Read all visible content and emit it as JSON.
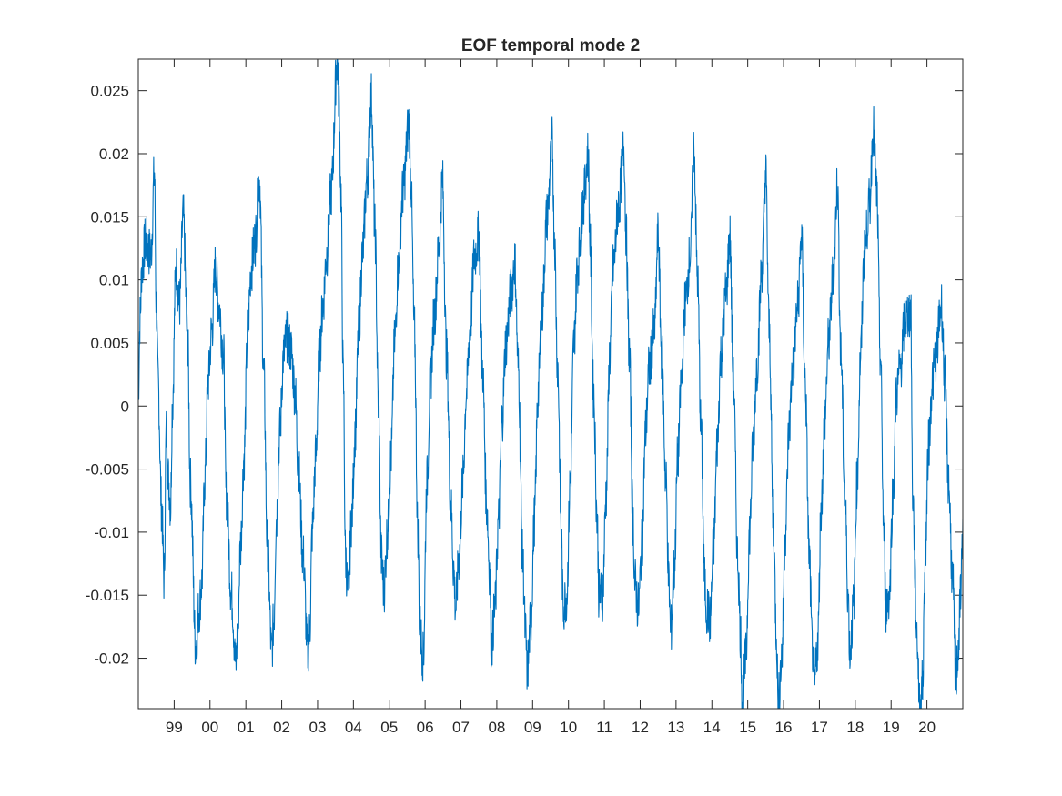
{
  "chart_data": {
    "type": "line",
    "title": "EOF temporal mode 2",
    "xlabel": "",
    "ylabel": "",
    "x_axis": {
      "unit": "year",
      "range": [
        1998.0,
        2021.0
      ],
      "tick_values": [
        1999,
        2000,
        2001,
        2002,
        2003,
        2004,
        2005,
        2006,
        2007,
        2008,
        2009,
        2010,
        2011,
        2012,
        2013,
        2014,
        2015,
        2016,
        2017,
        2018,
        2019,
        2020
      ],
      "tick_labels": [
        "99",
        "00",
        "01",
        "02",
        "03",
        "04",
        "05",
        "06",
        "07",
        "08",
        "09",
        "10",
        "11",
        "12",
        "13",
        "14",
        "15",
        "16",
        "17",
        "18",
        "19",
        "20"
      ]
    },
    "y_axis": {
      "range": [
        -0.024,
        0.0275
      ],
      "tick_values": [
        -0.02,
        -0.015,
        -0.01,
        -0.005,
        0,
        0.005,
        0.01,
        0.015,
        0.02,
        0.025
      ],
      "tick_labels": [
        "-0.02",
        "-0.015",
        "-0.01",
        "-0.005",
        "0",
        "0.005",
        "0.01",
        "0.015",
        "0.02",
        "0.025"
      ]
    },
    "grid": false,
    "box": true,
    "series": [
      {
        "color": "#0072BD",
        "x": [
          1998.0,
          1998.05,
          1998.1,
          1998.2,
          1998.35,
          1998.45,
          1998.5,
          1998.55,
          1998.65,
          1998.72,
          1998.78,
          1998.85,
          1998.9,
          1998.95,
          1999.05,
          1999.15,
          1999.25,
          1999.38,
          1999.45,
          1999.6,
          1999.7,
          1999.77,
          1999.85,
          1999.95,
          2000.05,
          2000.15,
          2000.25,
          2000.38,
          2000.45,
          2000.6,
          2000.72,
          2000.77,
          2000.85,
          2000.95,
          2001.05,
          2001.15,
          2001.25,
          2001.38,
          2001.5,
          2001.6,
          2001.72,
          2001.78,
          2001.85,
          2001.95,
          2002.05,
          2002.15,
          2002.25,
          2002.38,
          2002.45,
          2002.6,
          2002.72,
          2002.78,
          2002.85,
          2002.95,
          2003.05,
          2003.15,
          2003.25,
          2003.38,
          2003.55,
          2003.6,
          2003.65,
          2003.72,
          2003.78,
          2003.85,
          2003.95,
          2004.05,
          2004.15,
          2004.25,
          2004.38,
          2004.5,
          2004.6,
          2004.7,
          2004.78,
          2004.85,
          2004.95,
          2005.05,
          2005.15,
          2005.25,
          2005.38,
          2005.55,
          2005.6,
          2005.7,
          2005.8,
          2005.85,
          2005.95,
          2006.05,
          2006.15,
          2006.25,
          2006.4,
          2006.48,
          2006.6,
          2006.72,
          2006.8,
          2006.85,
          2006.95,
          2007.05,
          2007.15,
          2007.25,
          2007.38,
          2007.5,
          2007.6,
          2007.72,
          2007.8,
          2007.85,
          2007.95,
          2008.05,
          2008.15,
          2008.25,
          2008.4,
          2008.5,
          2008.6,
          2008.72,
          2008.8,
          2008.85,
          2008.95,
          2009.05,
          2009.15,
          2009.25,
          2009.4,
          2009.55,
          2009.6,
          2009.7,
          2009.8,
          2009.85,
          2009.95,
          2010.05,
          2010.15,
          2010.25,
          2010.4,
          2010.55,
          2010.6,
          2010.7,
          2010.8,
          2010.85,
          2010.95,
          2011.05,
          2011.15,
          2011.25,
          2011.4,
          2011.55,
          2011.6,
          2011.7,
          2011.8,
          2011.85,
          2011.95,
          2012.05,
          2012.15,
          2012.25,
          2012.4,
          2012.5,
          2012.6,
          2012.72,
          2012.8,
          2012.85,
          2012.95,
          2013.05,
          2013.15,
          2013.25,
          2013.4,
          2013.5,
          2013.6,
          2013.7,
          2013.8,
          2013.85,
          2013.95,
          2014.05,
          2014.15,
          2014.25,
          2014.4,
          2014.5,
          2014.6,
          2014.72,
          2014.8,
          2014.85,
          2014.95,
          2015.05,
          2015.15,
          2015.25,
          2015.4,
          2015.5,
          2015.6,
          2015.72,
          2015.8,
          2015.85,
          2015.95,
          2016.05,
          2016.15,
          2016.25,
          2016.4,
          2016.5,
          2016.6,
          2016.72,
          2016.8,
          2016.85,
          2016.95,
          2017.05,
          2017.15,
          2017.25,
          2017.4,
          2017.5,
          2017.6,
          2017.72,
          2017.8,
          2017.85,
          2017.95,
          2018.05,
          2018.15,
          2018.25,
          2018.4,
          2018.5,
          2018.6,
          2018.7,
          2018.8,
          2018.85,
          2018.95,
          2019.05,
          2019.15,
          2019.25,
          2019.4,
          2019.55,
          2019.6,
          2019.72,
          2019.8,
          2019.88,
          2019.95,
          2020.05,
          2020.15,
          2020.25,
          2020.4,
          2020.5,
          2020.6,
          2020.72,
          2020.8,
          2020.88,
          2020.95,
          2021.0
        ],
        "y": [
          0.001,
          0.007,
          0.011,
          0.013,
          0.012,
          0.0185,
          0.008,
          0.002,
          -0.008,
          -0.0138,
          -0.002,
          -0.006,
          -0.008,
          0.0,
          0.011,
          0.008,
          0.015,
          0.005,
          -0.006,
          -0.019,
          -0.016,
          -0.014,
          -0.006,
          0.002,
          0.006,
          0.011,
          0.008,
          0.004,
          -0.007,
          -0.015,
          -0.0205,
          -0.018,
          -0.011,
          -0.004,
          0.006,
          0.011,
          0.013,
          0.018,
          0.0025,
          -0.011,
          -0.0195,
          -0.017,
          -0.009,
          -0.002,
          0.004,
          0.0055,
          0.0045,
          0.001,
          -0.004,
          -0.012,
          -0.0195,
          -0.018,
          -0.01,
          -0.004,
          0.004,
          0.008,
          0.012,
          0.017,
          0.0275,
          0.024,
          0.017,
          0.002,
          -0.012,
          -0.015,
          -0.009,
          -0.002,
          0.006,
          0.012,
          0.018,
          0.0245,
          0.014,
          0.0,
          -0.012,
          -0.0145,
          -0.01,
          -0.004,
          0.005,
          0.011,
          0.017,
          0.0225,
          0.018,
          0.006,
          -0.01,
          -0.0175,
          -0.02,
          -0.006,
          0.002,
          0.007,
          0.013,
          0.018,
          0.004,
          -0.008,
          -0.013,
          -0.016,
          -0.012,
          -0.006,
          0.001,
          0.006,
          0.012,
          0.0135,
          0.003,
          -0.008,
          -0.013,
          -0.019,
          -0.016,
          -0.009,
          -0.001,
          0.005,
          0.009,
          0.0115,
          0.003,
          -0.012,
          -0.018,
          -0.021,
          -0.017,
          -0.009,
          0.001,
          0.007,
          0.015,
          0.021,
          0.014,
          0.003,
          -0.01,
          -0.016,
          -0.015,
          -0.006,
          0.005,
          0.011,
          0.016,
          0.02,
          0.013,
          0.001,
          -0.009,
          -0.015,
          -0.015,
          -0.007,
          0.004,
          0.011,
          0.016,
          0.0205,
          0.014,
          0.004,
          -0.009,
          -0.014,
          -0.016,
          -0.011,
          -0.002,
          0.003,
          0.006,
          0.0135,
          0.004,
          -0.006,
          -0.014,
          -0.018,
          -0.013,
          -0.004,
          0.002,
          0.008,
          0.012,
          0.0205,
          0.01,
          -0.002,
          -0.014,
          -0.016,
          -0.017,
          -0.011,
          -0.003,
          0.004,
          0.009,
          0.0135,
          0.002,
          -0.012,
          -0.018,
          -0.0235,
          -0.02,
          -0.01,
          -0.003,
          0.003,
          0.011,
          0.0185,
          0.006,
          -0.01,
          -0.018,
          -0.0235,
          -0.02,
          -0.01,
          -0.002,
          0.003,
          0.008,
          0.0135,
          0.002,
          -0.012,
          -0.019,
          -0.0225,
          -0.019,
          -0.008,
          -0.001,
          0.005,
          0.011,
          0.0175,
          0.004,
          -0.008,
          -0.015,
          -0.0195,
          -0.016,
          -0.006,
          0.004,
          0.012,
          0.016,
          0.022,
          0.017,
          0.004,
          -0.01,
          -0.016,
          -0.015,
          -0.007,
          0.001,
          0.003,
          0.007,
          0.0075,
          -0.007,
          -0.018,
          -0.024,
          -0.022,
          -0.012,
          -0.003,
          0.002,
          0.004,
          0.008,
          0.002,
          -0.006,
          -0.014,
          -0.022,
          -0.019,
          -0.014,
          -0.009
        ]
      }
    ]
  }
}
